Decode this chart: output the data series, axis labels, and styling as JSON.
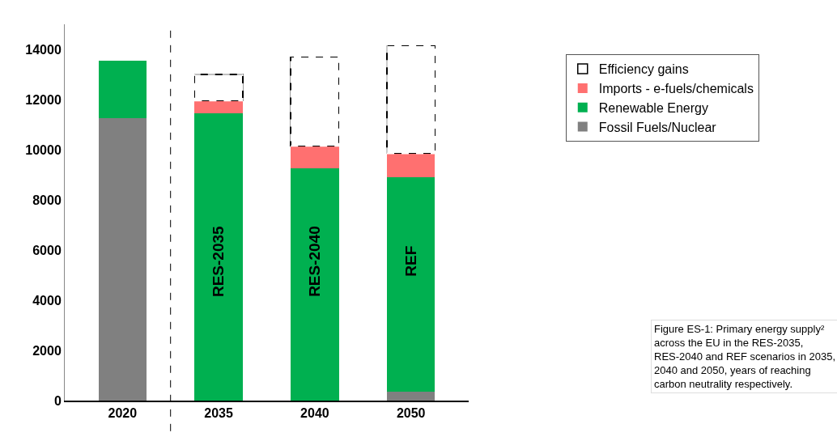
{
  "chart_data": {
    "type": "bar",
    "stacked": true,
    "categories": [
      "2020",
      "2035",
      "2040",
      "2050"
    ],
    "series": [
      {
        "name": "Fossil Fuels/Nuclear",
        "color": "#808080",
        "values": [
          11250,
          0,
          0,
          350
        ]
      },
      {
        "name": "Renewable Energy",
        "color": "#00b050",
        "values": [
          2300,
          11450,
          9250,
          8550
        ]
      },
      {
        "name": "Imports - e-fuels/chemicals",
        "color": "#ff7070",
        "values": [
          null,
          500,
          900,
          950
        ]
      },
      {
        "name": "Efficiency gains",
        "color": "#ffffff",
        "values": [
          null,
          1050,
          3550,
          4300
        ],
        "line_style": "dashed"
      }
    ],
    "ylim": [
      0,
      15000
    ],
    "yticks": [
      0,
      2000,
      4000,
      6000,
      8000,
      10000,
      12000,
      14000
    ],
    "legend": "top right",
    "annotations": [
      "RES-2035",
      "RES-2040",
      "REF",
      "Figure ES-1: Primary energy supply² across the EU in the RES-2035, RES-2040 and REF scenarios in 2035, 2040 and 2050, years of reaching carbon neutrality respectively."
    ]
  }
}
